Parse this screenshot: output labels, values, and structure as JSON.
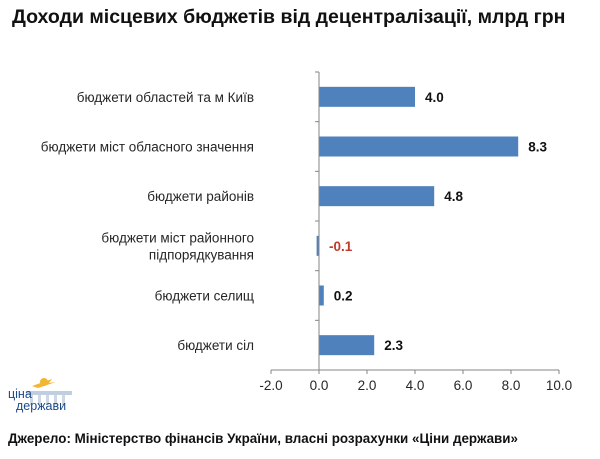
{
  "chart_data": {
    "type": "bar",
    "orientation": "horizontal",
    "title": "Доходи місцевих бюджетів від децентралізації, млрд грн",
    "categories": [
      [
        "бюджети областей та м Київ"
      ],
      [
        "бюджети міст обласного значення"
      ],
      [
        "бюджети районів"
      ],
      [
        "бюджети міст районного",
        "підпорядкування"
      ],
      [
        "бюджети селищ"
      ],
      [
        "бюджети сіл"
      ]
    ],
    "values": [
      4.0,
      8.3,
      4.8,
      -0.1,
      0.2,
      2.3
    ],
    "value_labels": [
      "4.0",
      "8.3",
      "4.8",
      "-0.1",
      "0.2",
      "2.3"
    ],
    "xlim": [
      -2.0,
      10.0
    ],
    "xticks": [
      -2.0,
      0.0,
      2.0,
      4.0,
      6.0,
      8.0,
      10.0
    ],
    "xtick_labels": [
      "-2.0",
      "0.0",
      "2.0",
      "4.0",
      "6.0",
      "8.0",
      "10.0"
    ],
    "grid": false,
    "legend": "none"
  },
  "colors": {
    "bar": "#4f81bd",
    "label_positive": "#111111",
    "label_negative": "#c0392b",
    "axis": "#868686"
  },
  "logo": {
    "line1": "ціна",
    "line2": "держави"
  },
  "source": "Джерело: Міністерство фінансів України, власні розрахунки «Ціни держави»"
}
